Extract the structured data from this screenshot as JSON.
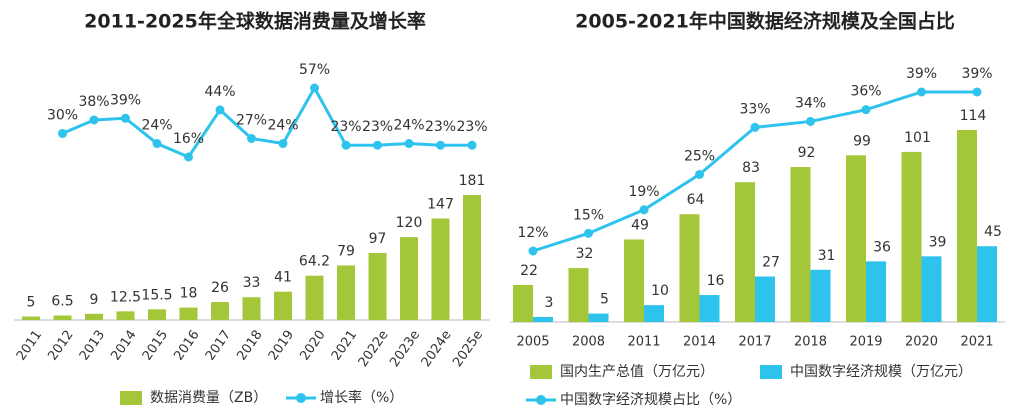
{
  "chart_data": [
    {
      "type": "bar",
      "title": "2011-2025年全球数据消费量及增长率",
      "categories": [
        "2011",
        "2012",
        "2013",
        "2014",
        "2015",
        "2016",
        "2017",
        "2018",
        "2019",
        "2020",
        "2021",
        "2022e",
        "2023e",
        "2024e",
        "2025e"
      ],
      "series": [
        {
          "name": "数据消费量（ZB）",
          "type": "bar",
          "color": "#a4c639",
          "values": [
            5,
            6.5,
            9,
            12.5,
            15.5,
            18,
            26,
            33,
            41,
            64.2,
            79,
            97,
            120,
            147,
            181
          ]
        },
        {
          "name": "增长率（%）",
          "type": "line",
          "axis": "y2",
          "color": "#2ec3ec",
          "values": [
            null,
            30,
            38,
            39,
            24,
            16,
            44,
            27,
            24,
            57,
            23,
            23,
            24,
            23,
            23
          ],
          "value_labels": [
            null,
            "30%",
            "38%",
            "39%",
            "24%",
            "16%",
            "44%",
            "27%",
            "24%",
            "57%",
            "23%",
            "23%",
            "24%",
            "23%",
            "23%"
          ]
        }
      ]
    },
    {
      "type": "bar",
      "title": "2005-2021年中国数据经济规模及全国占比",
      "categories": [
        "2005",
        "2008",
        "2011",
        "2014",
        "2017",
        "2018",
        "2019",
        "2020",
        "2021"
      ],
      "series": [
        {
          "name": "国内生产总值（万亿元）",
          "type": "bar",
          "color": "#a4c639",
          "values": [
            22,
            32,
            49,
            64,
            83,
            92,
            99,
            101,
            114
          ]
        },
        {
          "name": "中国数字经济规模（万亿元）",
          "type": "bar",
          "color": "#2ec3ec",
          "values": [
            3,
            5,
            10,
            16,
            27,
            31,
            36,
            39,
            45
          ]
        },
        {
          "name": "中国数字经济规模占比（%）",
          "type": "line",
          "axis": "y2",
          "color": "#2ec3ec",
          "values": [
            12,
            15,
            19,
            25,
            33,
            34,
            36,
            39,
            39
          ],
          "value_labels": [
            "12%",
            "15%",
            "19%",
            "25%",
            "33%",
            "34%",
            "36%",
            "39%",
            "39%"
          ]
        }
      ]
    }
  ]
}
